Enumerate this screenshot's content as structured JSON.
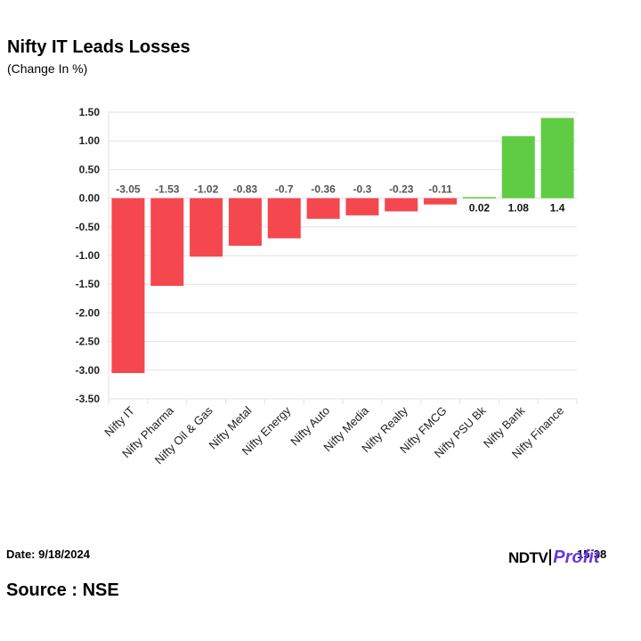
{
  "header": {
    "title": "Nifty IT Leads Losses",
    "subtitle": "(Change In %)"
  },
  "chart_data": {
    "type": "bar",
    "categories": [
      "Nifty IT",
      "Nifty Pharma",
      "Nifty Oil & Gas",
      "Nifty Metal",
      "Nifty Energy",
      "Nifty Auto",
      "Nifty Media",
      "Nifty Realty",
      "Nifty FMCG",
      "Nifty PSU Bk",
      "Nifty Bank",
      "Nifty Finance"
    ],
    "values": [
      -3.05,
      -1.53,
      -1.02,
      -0.83,
      -0.7,
      -0.36,
      -0.3,
      -0.23,
      -0.11,
      0.02,
      1.08,
      1.4
    ],
    "data_labels": [
      "-3.05",
      "-1.53",
      "-1.02",
      "-0.83",
      "-0.7",
      "-0.36",
      "-0.3",
      "-0.23",
      "-0.11",
      "0.02",
      "1.08",
      "1.4"
    ],
    "y_ticks": [
      1.5,
      1.0,
      0.5,
      0.0,
      -0.5,
      -1.0,
      -1.5,
      -2.0,
      -2.5,
      -3.0,
      -3.5
    ],
    "y_tick_labels": [
      "1.50",
      "1.00",
      "0.50",
      "0.00",
      "-0.50",
      "-1.00",
      "-1.50",
      "-2.00",
      "-2.50",
      "-3.00",
      "-3.50"
    ],
    "ylim": [
      -3.5,
      1.5
    ],
    "grid": true,
    "colors": {
      "negative": "#f5474e",
      "positive": "#5fcc44",
      "grid": "#e2e2e2"
    }
  },
  "footer": {
    "date": "Date: 9/18/2024",
    "time_partial": "15:38",
    "logo_ndtv": "NDTV",
    "logo_profit": "Profit",
    "source": "Source : NSE"
  }
}
